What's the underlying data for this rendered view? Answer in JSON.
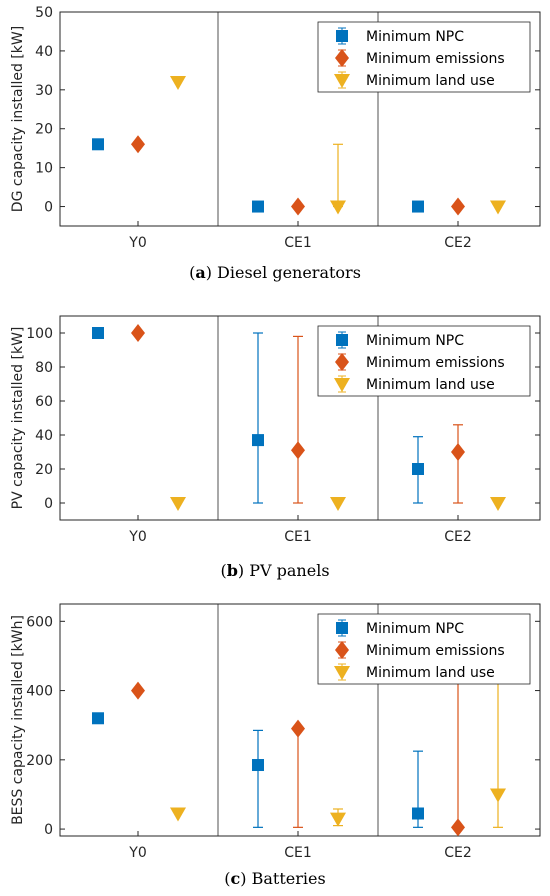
{
  "chart_data": [
    {
      "type": "scatter",
      "caption_letter": "a",
      "caption_text": " Diesel generators",
      "ylabel": "DG capacity installed [kW]",
      "categories": [
        "Y0",
        "CE1",
        "CE2"
      ],
      "ylim": [
        -5,
        50
      ],
      "yticks": [
        0,
        10,
        20,
        30,
        40,
        50
      ],
      "legend_position": "top-right",
      "series": [
        {
          "name": "Minimum NPC",
          "marker": "square",
          "color": "#0072BD",
          "values": [
            16,
            0,
            0
          ],
          "err_low": [
            16,
            0,
            0
          ],
          "err_high": [
            16,
            0,
            0
          ]
        },
        {
          "name": "Minimum emissions",
          "marker": "diamond",
          "color": "#D95319",
          "values": [
            16,
            0,
            0
          ],
          "err_low": [
            16,
            0,
            0
          ],
          "err_high": [
            16,
            0,
            0
          ]
        },
        {
          "name": "Minimum land use",
          "marker": "triangle-down",
          "color": "#EDB120",
          "values": [
            32,
            0,
            0
          ],
          "err_low": [
            32,
            0,
            0
          ],
          "err_high": [
            32,
            16,
            0
          ]
        }
      ]
    },
    {
      "type": "scatter",
      "caption_letter": "b",
      "caption_text": " PV panels",
      "ylabel": "PV capacity installed [kW]",
      "categories": [
        "Y0",
        "CE1",
        "CE2"
      ],
      "ylim": [
        -10,
        110
      ],
      "yticks": [
        0,
        20,
        40,
        60,
        80,
        100
      ],
      "legend_position": "top-right",
      "series": [
        {
          "name": "Minimum NPC",
          "marker": "square",
          "color": "#0072BD",
          "values": [
            100,
            37,
            20
          ],
          "err_low": [
            100,
            0,
            0
          ],
          "err_high": [
            100,
            100,
            39
          ]
        },
        {
          "name": "Minimum emissions",
          "marker": "diamond",
          "color": "#D95319",
          "values": [
            100,
            31,
            30
          ],
          "err_low": [
            100,
            0,
            0
          ],
          "err_high": [
            100,
            98,
            46
          ]
        },
        {
          "name": "Minimum land use",
          "marker": "triangle-down",
          "color": "#EDB120",
          "values": [
            0,
            0,
            0
          ],
          "err_low": [
            0,
            0,
            0
          ],
          "err_high": [
            0,
            0,
            0
          ]
        }
      ]
    },
    {
      "type": "scatter",
      "caption_letter": "c",
      "caption_text": " Batteries",
      "ylabel": "BESS capacity installed [kWh]",
      "categories": [
        "Y0",
        "CE1",
        "CE2"
      ],
      "ylim": [
        -20,
        650
      ],
      "yticks": [
        0,
        200,
        400,
        600
      ],
      "legend_position": "top-right",
      "series": [
        {
          "name": "Minimum NPC",
          "marker": "square",
          "color": "#0072BD",
          "values": [
            320,
            185,
            45
          ],
          "err_low": [
            320,
            5,
            5
          ],
          "err_high": [
            320,
            285,
            225
          ]
        },
        {
          "name": "Minimum emissions",
          "marker": "diamond",
          "color": "#D95319",
          "values": [
            400,
            290,
            5
          ],
          "err_low": [
            400,
            5,
            0
          ],
          "err_high": [
            400,
            290,
            580
          ]
        },
        {
          "name": "Minimum land use",
          "marker": "triangle-down",
          "color": "#EDB120",
          "values": [
            45,
            30,
            100
          ],
          "err_low": [
            45,
            10,
            5
          ],
          "err_high": [
            45,
            58,
            580
          ]
        }
      ]
    }
  ]
}
